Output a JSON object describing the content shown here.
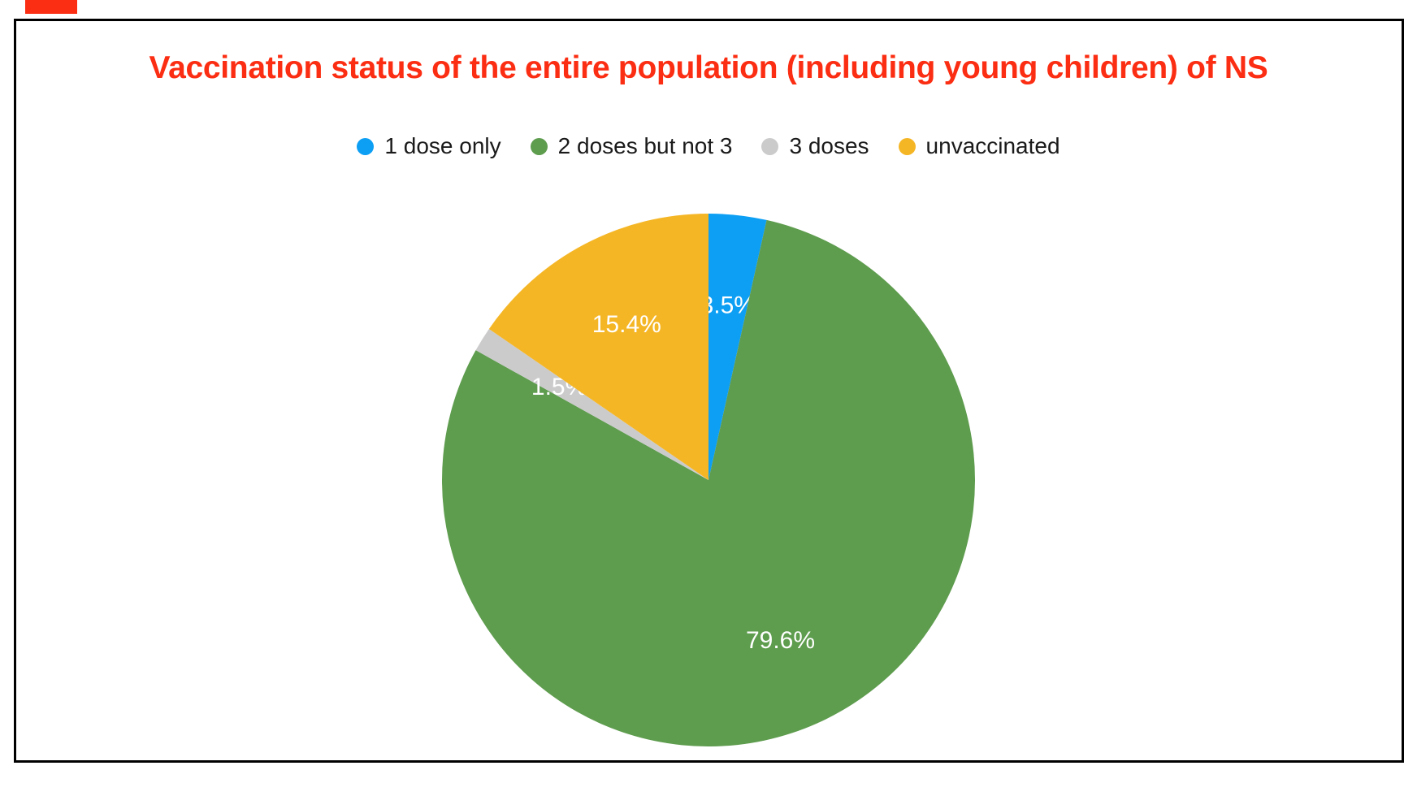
{
  "decorations": {
    "corner_marker_color": "#fb2d12"
  },
  "chart_data": {
    "type": "pie",
    "title": "Vaccination status of the entire population (including young children) of NS",
    "title_color": "#fb2d12",
    "legend_position": "top",
    "label_format": "percent",
    "start_angle_deg": 0,
    "direction": "clockwise",
    "slices": [
      {
        "label": "1 dose only",
        "value": 3.5,
        "display": "3.5%",
        "color": "#0d9ff4"
      },
      {
        "label": "2 doses but not 3",
        "value": 79.6,
        "display": "79.6%",
        "color": "#5e9c4e"
      },
      {
        "label": "3 doses",
        "value": 1.5,
        "display": "1.5%",
        "color": "#cbcbcb"
      },
      {
        "label": "unvaccinated",
        "value": 15.4,
        "display": "15.4%",
        "color": "#f5b626"
      }
    ]
  }
}
